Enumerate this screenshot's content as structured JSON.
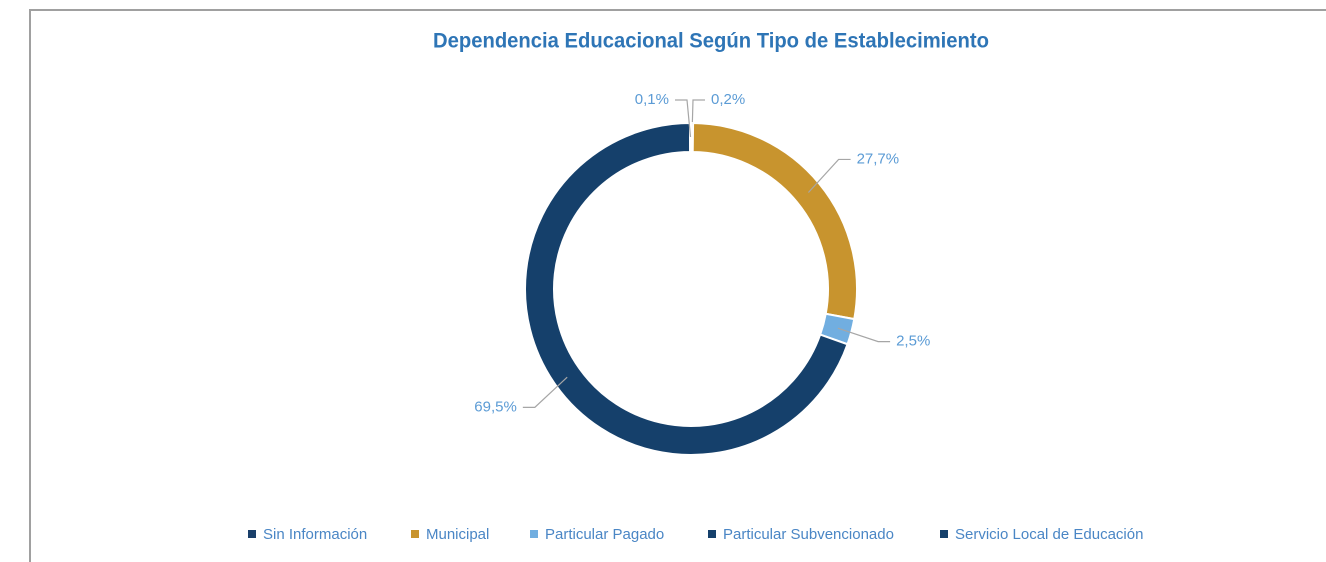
{
  "chart_data": {
    "type": "donut",
    "title": "Dependencia Educacional Según Tipo de Establecimiento",
    "categories": [
      "Sin Información",
      "Municipal",
      "Particular Pagado",
      "Particular Subvencionado",
      "Servicio Local de Educación"
    ],
    "values": [
      0.2,
      27.7,
      2.5,
      69.5,
      0.1
    ],
    "value_labels": [
      "0,2%",
      "27,7%",
      "2,5%",
      "69,5%",
      "0,1%"
    ],
    "colors": [
      "#1a3f6a",
      "#c8942e",
      "#71aee0",
      "#15406b",
      "#15406b"
    ],
    "legend": "bottom"
  }
}
